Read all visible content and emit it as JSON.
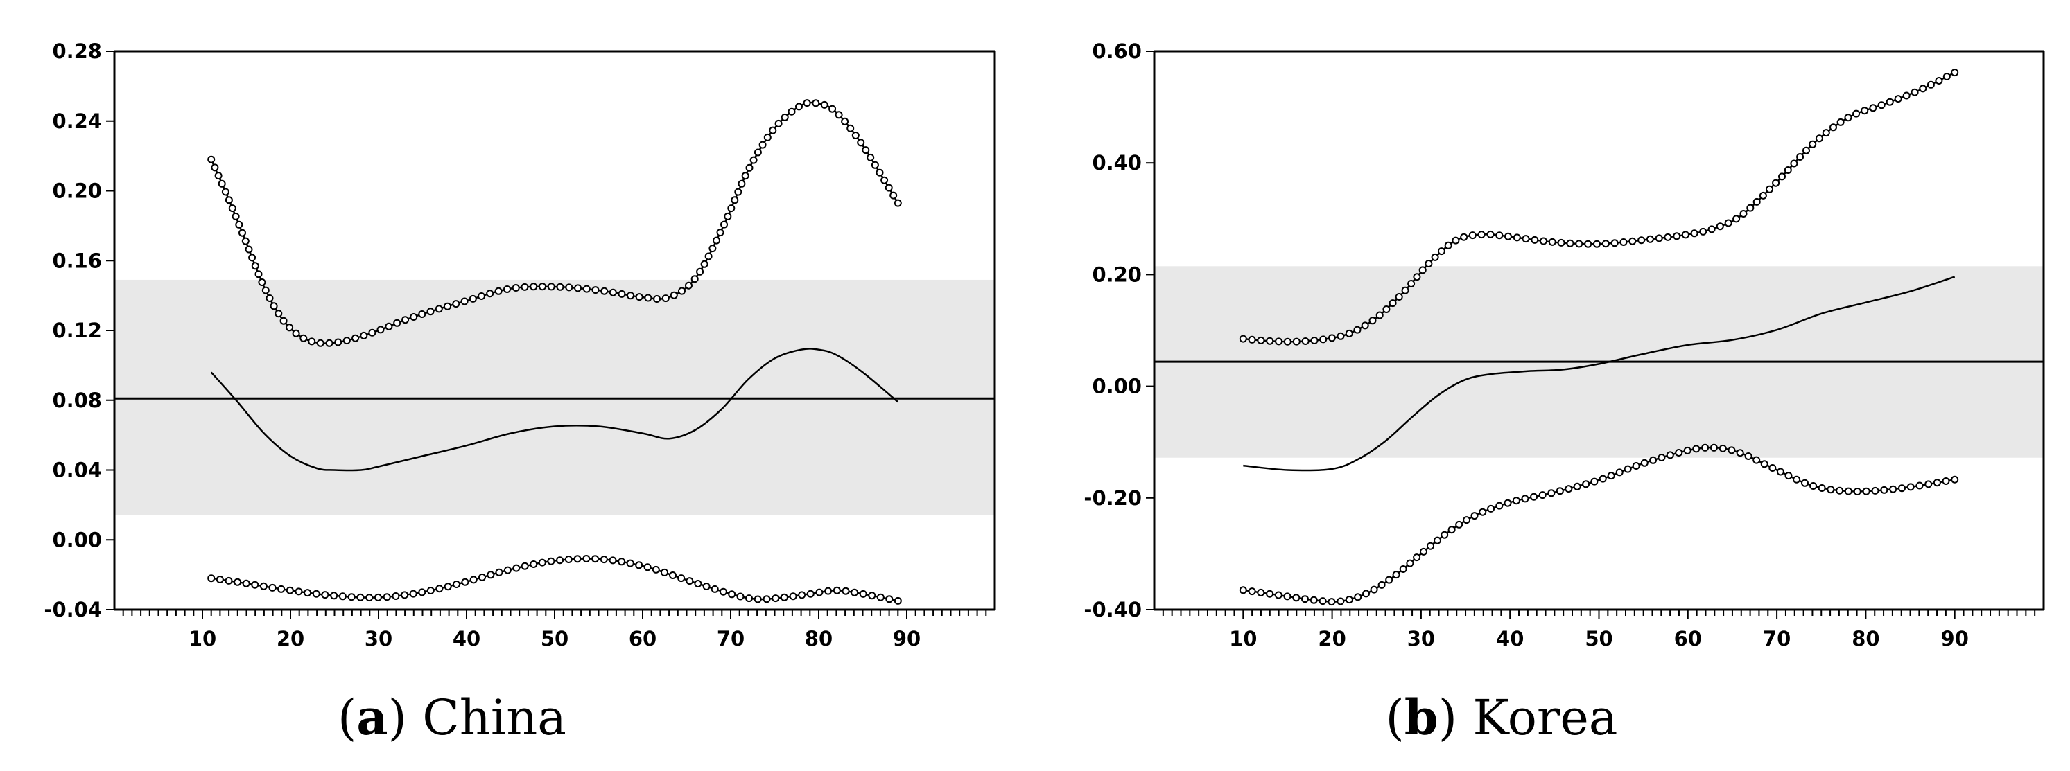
{
  "chart_data": [
    {
      "type": "line",
      "panel_letter": "a",
      "panel_name": "China",
      "xlim": [
        0,
        100
      ],
      "ylim": [
        -0.04,
        0.28
      ],
      "x_ticks": [
        10,
        20,
        30,
        40,
        50,
        60,
        70,
        80,
        90
      ],
      "x_tick_labels": [
        "10",
        "20",
        "30",
        "40",
        "50",
        "60",
        "70",
        "80",
        "90"
      ],
      "y_ticks": [
        -0.04,
        0.0,
        0.04,
        0.08,
        0.12,
        0.16,
        0.2,
        0.24,
        0.28
      ],
      "y_tick_labels": [
        "-0.04",
        "0.00",
        "0.04",
        "0.08",
        "0.12",
        "0.16",
        "0.20",
        "0.24",
        "0.28"
      ],
      "band": [
        0.014,
        0.149
      ],
      "reference_line": 0.081,
      "series": [
        {
          "name": "upper",
          "style": "line-with-markers",
          "x": [
            11,
            13,
            15,
            17,
            19,
            21,
            23,
            25,
            27,
            30,
            33,
            36,
            40,
            45,
            50,
            55,
            60,
            63,
            66,
            69,
            72,
            75,
            78,
            80,
            82,
            85,
            89
          ],
          "y": [
            0.218,
            0.195,
            0.17,
            0.145,
            0.127,
            0.117,
            0.113,
            0.113,
            0.115,
            0.12,
            0.126,
            0.131,
            0.137,
            0.144,
            0.145,
            0.143,
            0.139,
            0.139,
            0.15,
            0.178,
            0.212,
            0.236,
            0.249,
            0.25,
            0.245,
            0.226,
            0.193
          ]
        },
        {
          "name": "estimate",
          "style": "line",
          "x": [
            11,
            14,
            17,
            20,
            23,
            25,
            28,
            30,
            35,
            40,
            45,
            50,
            55,
            60,
            63,
            66,
            69,
            72,
            75,
            78,
            80,
            82,
            85,
            89
          ],
          "y": [
            0.096,
            0.079,
            0.061,
            0.048,
            0.041,
            0.04,
            0.04,
            0.042,
            0.048,
            0.054,
            0.061,
            0.065,
            0.065,
            0.061,
            0.058,
            0.063,
            0.075,
            0.092,
            0.104,
            0.109,
            0.109,
            0.106,
            0.096,
            0.079
          ]
        },
        {
          "name": "lower",
          "style": "line-with-markers",
          "x": [
            11,
            15,
            20,
            25,
            30,
            35,
            40,
            45,
            50,
            55,
            60,
            65,
            70,
            73,
            76,
            79,
            82,
            85,
            89
          ],
          "y": [
            -0.022,
            -0.025,
            -0.029,
            -0.032,
            -0.033,
            -0.03,
            -0.024,
            -0.017,
            -0.012,
            -0.011,
            -0.015,
            -0.023,
            -0.031,
            -0.034,
            -0.033,
            -0.031,
            -0.029,
            -0.031,
            -0.035
          ]
        }
      ]
    },
    {
      "type": "line",
      "panel_letter": "b",
      "panel_name": "Korea",
      "xlim": [
        0,
        100
      ],
      "ylim": [
        -0.4,
        0.6
      ],
      "x_ticks": [
        10,
        20,
        30,
        40,
        50,
        60,
        70,
        80,
        90
      ],
      "x_tick_labels": [
        "10",
        "20",
        "30",
        "40",
        "50",
        "60",
        "70",
        "80",
        "90"
      ],
      "y_ticks": [
        -0.4,
        -0.2,
        0.0,
        0.2,
        0.4,
        0.6
      ],
      "y_tick_labels": [
        "-0.40",
        "-0.20",
        "0.00",
        "0.20",
        "0.40",
        "0.60"
      ],
      "band": [
        -0.128,
        0.215
      ],
      "reference_line": 0.044,
      "series": [
        {
          "name": "upper",
          "style": "line-with-markers",
          "x": [
            10,
            13,
            16,
            19,
            22,
            25,
            28,
            31,
            34,
            37,
            40,
            45,
            50,
            55,
            60,
            63,
            66,
            70,
            74,
            78,
            82,
            86,
            90
          ],
          "y": [
            0.085,
            0.081,
            0.08,
            0.084,
            0.095,
            0.123,
            0.168,
            0.222,
            0.262,
            0.272,
            0.268,
            0.258,
            0.255,
            0.262,
            0.272,
            0.283,
            0.306,
            0.366,
            0.433,
            0.481,
            0.505,
            0.53,
            0.562
          ]
        },
        {
          "name": "estimate",
          "style": "line",
          "x": [
            10,
            15,
            20,
            23,
            26,
            29,
            32,
            35,
            38,
            42,
            46,
            50,
            55,
            60,
            65,
            70,
            75,
            80,
            85,
            90
          ],
          "y": [
            -0.142,
            -0.15,
            -0.148,
            -0.13,
            -0.098,
            -0.055,
            -0.015,
            0.012,
            0.022,
            0.027,
            0.03,
            0.04,
            0.058,
            0.074,
            0.083,
            0.101,
            0.13,
            0.15,
            0.17,
            0.196
          ]
        },
        {
          "name": "lower",
          "style": "line-with-markers",
          "x": [
            10,
            14,
            18,
            21,
            24,
            27,
            30,
            33,
            36,
            40,
            45,
            50,
            55,
            60,
            63,
            66,
            70,
            74,
            78,
            82,
            86,
            90
          ],
          "y": [
            -0.365,
            -0.374,
            -0.383,
            -0.385,
            -0.37,
            -0.34,
            -0.3,
            -0.262,
            -0.232,
            -0.208,
            -0.19,
            -0.168,
            -0.138,
            -0.115,
            -0.11,
            -0.12,
            -0.15,
            -0.178,
            -0.188,
            -0.186,
            -0.178,
            -0.167
          ]
        }
      ]
    }
  ]
}
